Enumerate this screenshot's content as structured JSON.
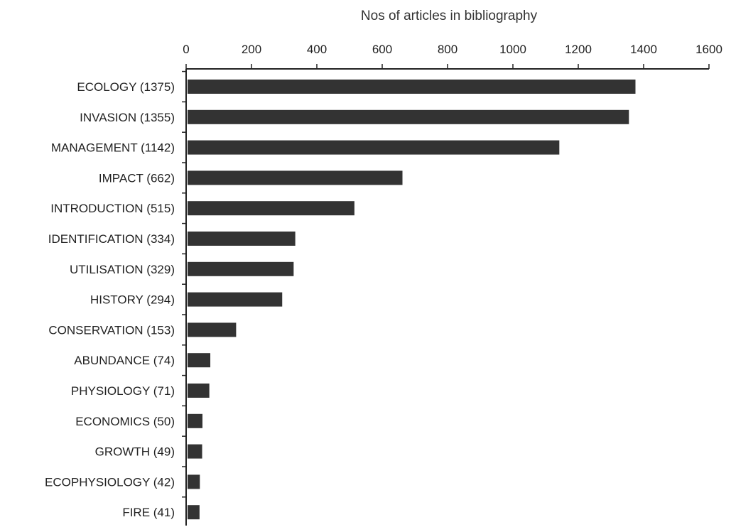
{
  "chart_data": {
    "type": "bar",
    "orientation": "horizontal",
    "xlabel": "Nos of articles in bibliography",
    "xlim": [
      0,
      1600
    ],
    "xticks": [
      0,
      200,
      400,
      600,
      800,
      1000,
      1200,
      1400,
      1600
    ],
    "axis_position": "top",
    "categories": [
      "ECOLOGY (1375)",
      "INVASION (1355)",
      "MANAGEMENT (1142)",
      "IMPACT (662)",
      "INTRODUCTION (515)",
      "IDENTIFICATION (334)",
      "UTILISATION (329)",
      "HISTORY (294)",
      "CONSERVATION (153)",
      "ABUNDANCE (74)",
      "PHYSIOLOGY (71)",
      "ECONOMICS (50)",
      "GROWTH (49)",
      "ECOPHYSIOLOGY (42)",
      "FIRE (41)"
    ],
    "values": [
      1375,
      1355,
      1142,
      662,
      515,
      334,
      329,
      294,
      153,
      74,
      71,
      50,
      49,
      42,
      41
    ],
    "bar_color": "#333333",
    "grid": false,
    "legend": "none"
  }
}
